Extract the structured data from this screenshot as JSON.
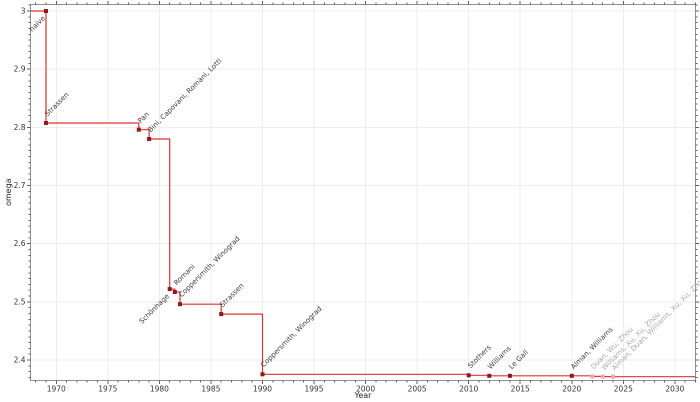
{
  "chart_data": {
    "type": "line",
    "subtype": "step-post",
    "title": "",
    "xlabel": "Year",
    "ylabel": "omega",
    "x_domain": [
      1967.5,
      2032
    ],
    "y_domain": [
      2.3648,
      3.0112
    ],
    "x_major_ticks": [
      1970,
      1975,
      1980,
      1985,
      1990,
      1995,
      2000,
      2005,
      2010,
      2015,
      2020,
      2025,
      2030
    ],
    "x_minor_step": 1,
    "y_major_ticks": [
      2.4,
      2.5,
      2.6,
      2.7,
      2.8,
      2.9,
      3.0
    ],
    "y_minor_step": 0.01,
    "grid": true,
    "legend": "none",
    "colors": {
      "line": "#dd3333",
      "marker": "#8c1a18",
      "marker_unconfirmed": "#f1a9a7",
      "label": "#3d3d3d",
      "label_unconfirmed": "#a9a9a9",
      "spine": "#909090",
      "tick": "#606060",
      "tick_label": "#333333",
      "grid": "#ededed"
    },
    "points": [
      {
        "year": 1969,
        "omega": 3.0,
        "label": "naive",
        "side": "below",
        "unconfirmed": false
      },
      {
        "year": 1969,
        "omega": 2.8074,
        "label": "Strassen",
        "side": "above",
        "unconfirmed": false
      },
      {
        "year": 1978,
        "omega": 2.796,
        "label": "Pan",
        "side": "above",
        "unconfirmed": false
      },
      {
        "year": 1979,
        "omega": 2.78,
        "label": "Bini, Capovani, Romani, Lotti",
        "side": "above",
        "unconfirmed": false
      },
      {
        "year": 1981,
        "omega": 2.522,
        "label": "Schönhage",
        "side": "below",
        "unconfirmed": false
      },
      {
        "year": 1981.5,
        "omega": 2.517,
        "label": "Romani",
        "side": "above",
        "unconfirmed": false
      },
      {
        "year": 1982,
        "omega": 2.496,
        "label": "Coppersmith, Winograd",
        "side": "above",
        "unconfirmed": false
      },
      {
        "year": 1986,
        "omega": 2.479,
        "label": "Strassen",
        "side": "above",
        "unconfirmed": false
      },
      {
        "year": 1990,
        "omega": 2.3755,
        "label": "Coppersmith, Winograd",
        "side": "above",
        "unconfirmed": false
      },
      {
        "year": 2010,
        "omega": 2.3737,
        "label": "Stothers",
        "side": "above",
        "unconfirmed": false
      },
      {
        "year": 2012,
        "omega": 2.372873,
        "label": "Williams",
        "side": "above",
        "unconfirmed": false
      },
      {
        "year": 2014,
        "omega": 2.3728639,
        "label": "Le Gall",
        "side": "above",
        "unconfirmed": false
      },
      {
        "year": 2020,
        "omega": 2.3728596,
        "label": "Alman, Williams",
        "side": "above",
        "unconfirmed": false
      },
      {
        "year": 2022,
        "omega": 2.371866,
        "label": "Duan, Wu, Zhou",
        "side": "above",
        "unconfirmed": true
      },
      {
        "year": 2023,
        "omega": 2.371552,
        "label": "Williams, Xu, Xu, Zhou",
        "side": "above",
        "unconfirmed": true
      },
      {
        "year": 2024,
        "omega": 2.371339,
        "label": "Alman, Duan, Williams, Xu, Xu, Zhou",
        "side": "above",
        "unconfirmed": true
      }
    ]
  }
}
